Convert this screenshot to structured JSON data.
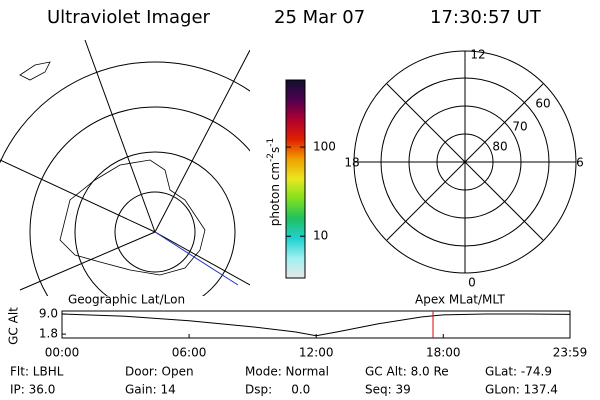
{
  "header": {
    "title": "Ultraviolet Imager",
    "date": "25 Mar 07",
    "time": "17:30:57 UT"
  },
  "colorbar": {
    "label": {
      "base": "photon cm",
      "exp1": "-2",
      "unit2": "s",
      "exp2": "-1"
    },
    "scale": "log",
    "lim": [
      3.4,
      565
    ],
    "ticks": [
      10,
      100
    ],
    "colors": [
      "#e8e8e8",
      "#9ff0f0",
      "#20d0d0",
      "#20c060",
      "#80e020",
      "#e8e820",
      "#f0a000",
      "#e02000",
      "#b00030",
      "#500050",
      "#101030"
    ]
  },
  "mlt_grid": {
    "hour_labels": [
      "12",
      "18",
      "6",
      "0"
    ],
    "lat_labels": [
      "60",
      "70",
      "80"
    ]
  },
  "captions": {
    "left": "Geographic Lat/Lon",
    "right": "Apex MLat/MLT"
  },
  "chart_data": {
    "type": "line",
    "ylabel": "GC Alt",
    "x": [
      0,
      3,
      6,
      9,
      11,
      12,
      13,
      15,
      17,
      18,
      20,
      22,
      23.983
    ],
    "series": [
      {
        "color": "#000000",
        "values": [
          9.0,
          8.2,
          6.6,
          4.4,
          2.6,
          1.2,
          2.6,
          5.6,
          8.0,
          8.7,
          9.0,
          9.0,
          8.9
        ]
      }
    ],
    "xlim": [
      0,
      23.983
    ],
    "ylim": [
      0.4,
      10.1
    ],
    "xticks": [
      {
        "value": 0,
        "label": "00:00"
      },
      {
        "value": 6,
        "label": "06:00"
      },
      {
        "value": 12,
        "label": "12:00"
      },
      {
        "value": 18,
        "label": "18:00"
      },
      {
        "value": 23.983,
        "label": "23:59"
      }
    ],
    "yticks": [
      {
        "value": 9,
        "label": "9.0"
      },
      1.8
    ],
    "marker": {
      "x": 17.516,
      "color": "#e00000"
    }
  },
  "footer": [
    [
      "Flt: LBHL",
      "Door: Open",
      "Mode: Normal",
      "GC Alt: 8.0 Re",
      "GLat: -74.9"
    ],
    [
      "IP: 36.0",
      "Gain: 14",
      "Dsp:     0.0",
      "Seq: 39",
      "GLon: 137.4"
    ]
  ]
}
